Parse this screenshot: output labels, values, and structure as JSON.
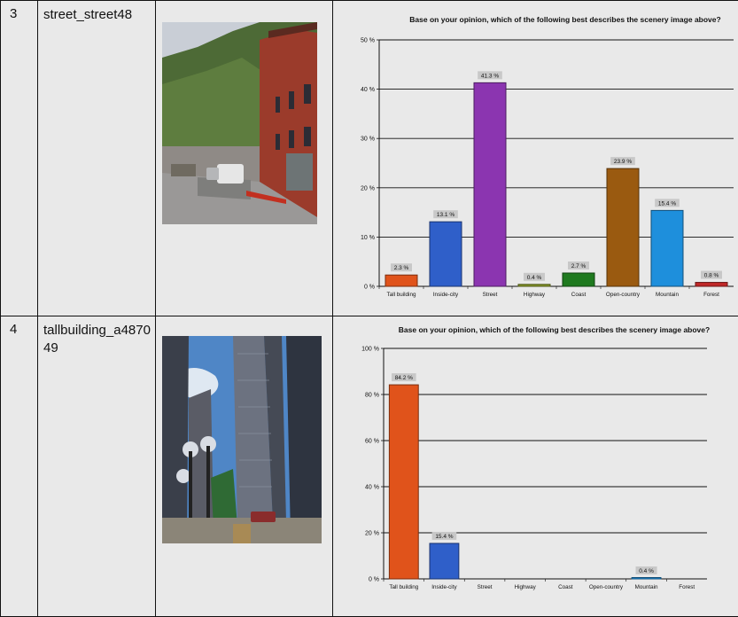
{
  "rows": [
    {
      "index": "3",
      "name": "street_street48",
      "photo_icon": "street-scene-photo",
      "chart_data": {
        "type": "bar",
        "title": "Base on your opinion, which of the following best describes the scenery image above?",
        "categories": [
          "Tall building",
          "Inside-city",
          "Street",
          "Highway",
          "Coast",
          "Open-country",
          "Mountain",
          "Forest"
        ],
        "values": [
          2.3,
          13.1,
          41.3,
          0.4,
          2.7,
          23.9,
          15.4,
          0.8
        ],
        "value_labels": [
          "2.3 %",
          "13.1 %",
          "41.3 %",
          "0.4 %",
          "2.7 %",
          "23.9 %",
          "15.4 %",
          "0.8 %"
        ],
        "colors": [
          "#e0531b",
          "#2f5fc9",
          "#8b35b0",
          "#8a9a2a",
          "#1f7a1f",
          "#9a5a10",
          "#1e8fdc",
          "#c02828"
        ],
        "ylim": [
          0,
          50
        ],
        "yticks": [
          0,
          10,
          20,
          30,
          40,
          50
        ],
        "ytick_labels": [
          "0 %",
          "10 %",
          "20 %",
          "30 %",
          "40 %",
          "50 %"
        ],
        "grid": true
      }
    },
    {
      "index": "4",
      "name": "tallbuilding_a487049",
      "photo_icon": "tall-building-photo",
      "chart_data": {
        "type": "bar",
        "title": "Base on your opinion, which of the following best describes the scenery image above?",
        "categories": [
          "Tall building",
          "Inside-city",
          "Street",
          "Highway",
          "Coast",
          "Open-country",
          "Mountain",
          "Forest"
        ],
        "values": [
          84.2,
          15.4,
          0,
          0,
          0,
          0,
          0.4,
          0
        ],
        "value_labels": [
          "84.2 %",
          "15.4 %",
          "",
          "",
          "",
          "",
          "0.4 %",
          ""
        ],
        "colors": [
          "#e0531b",
          "#2f5fc9",
          "#8b35b0",
          "#8a9a2a",
          "#1f7a1f",
          "#9a5a10",
          "#1e8fdc",
          "#c02828"
        ],
        "ylim": [
          0,
          100
        ],
        "yticks": [
          0,
          20,
          40,
          60,
          80,
          100
        ],
        "ytick_labels": [
          "0 %",
          "20 %",
          "40 %",
          "60 %",
          "80 %",
          "100 %"
        ],
        "grid": true
      }
    }
  ]
}
